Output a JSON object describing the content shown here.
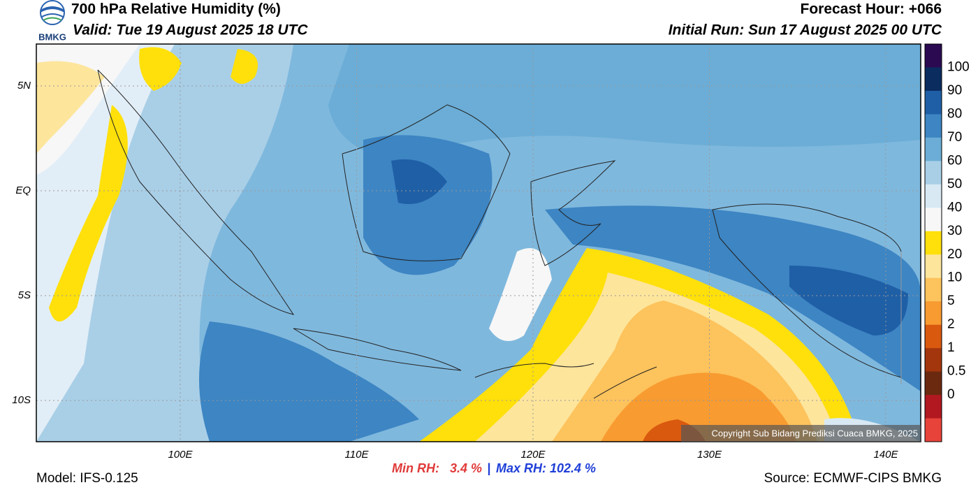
{
  "header": {
    "logo_text": "BMKG",
    "title": "700 hPa Relative Humidity (%)",
    "valid": "Valid: Tue 19 August 2025 18 UTC",
    "forecast_hour": "Forecast Hour: +066",
    "initial_run": "Initial Run: Sun 17 August 2025 00 UTC"
  },
  "map": {
    "lat_labels": [
      "5N",
      "EQ",
      "5S",
      "10S"
    ],
    "lon_labels": [
      "100E",
      "110E",
      "120E",
      "130E",
      "140E"
    ],
    "copyright": "Copyright Sub Bidang Prediksi Cuaca BMKG, 2025"
  },
  "colorbar": {
    "labels": [
      "100",
      "90",
      "80",
      "70",
      "60",
      "50",
      "40",
      "30",
      "20",
      "10",
      "5",
      "2",
      "1",
      "0.5",
      "0"
    ],
    "colors": [
      "#2b0a52",
      "#0b2c5f",
      "#1f5fa6",
      "#3d85c3",
      "#6badd6",
      "#a9cfe7",
      "#d8e9f4",
      "#f7f7f7",
      "#ffe00a",
      "#fde59c",
      "#fdc35c",
      "#f89b30",
      "#d9590f",
      "#a3360c",
      "#6b2a10",
      "#b11820",
      "#e8433a"
    ]
  },
  "footer": {
    "model": "Model: IFS-0.125",
    "min_rh": "Min RH:   3.4 %",
    "separator": "|",
    "max_rh": "Max RH: 102.4 %",
    "source": "Source: ECMWF-CIPS BMKG"
  }
}
